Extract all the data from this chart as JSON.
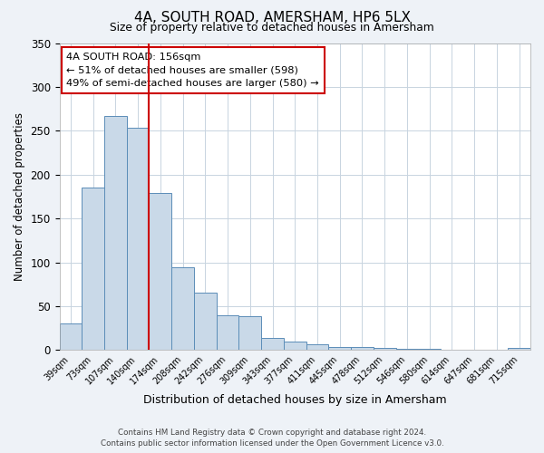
{
  "title": "4A, SOUTH ROAD, AMERSHAM, HP6 5LX",
  "subtitle": "Size of property relative to detached houses in Amersham",
  "xlabel": "Distribution of detached houses by size in Amersham",
  "ylabel": "Number of detached properties",
  "bar_labels": [
    "39sqm",
    "73sqm",
    "107sqm",
    "140sqm",
    "174sqm",
    "208sqm",
    "242sqm",
    "276sqm",
    "309sqm",
    "343sqm",
    "377sqm",
    "411sqm",
    "445sqm",
    "478sqm",
    "512sqm",
    "546sqm",
    "580sqm",
    "614sqm",
    "647sqm",
    "681sqm",
    "715sqm"
  ],
  "bar_values": [
    30,
    185,
    267,
    253,
    179,
    94,
    65,
    40,
    39,
    14,
    10,
    7,
    4,
    3,
    2,
    1,
    1,
    0,
    0,
    0,
    2
  ],
  "bar_color": "#c9d9e8",
  "bar_edge_color": "#5b8db8",
  "vline_color": "#cc0000",
  "vline_pos": 3.5,
  "ylim": [
    0,
    350
  ],
  "yticks": [
    0,
    50,
    100,
    150,
    200,
    250,
    300,
    350
  ],
  "annotation_title": "4A SOUTH ROAD: 156sqm",
  "annotation_line1": "← 51% of detached houses are smaller (598)",
  "annotation_line2": "49% of semi-detached houses are larger (580) →",
  "annotation_box_color": "#ffffff",
  "annotation_box_edge": "#cc0000",
  "footer_line1": "Contains HM Land Registry data © Crown copyright and database right 2024.",
  "footer_line2": "Contains public sector information licensed under the Open Government Licence v3.0.",
  "bg_color": "#eef2f7",
  "plot_bg_color": "#ffffff",
  "grid_color": "#c8d4e0"
}
